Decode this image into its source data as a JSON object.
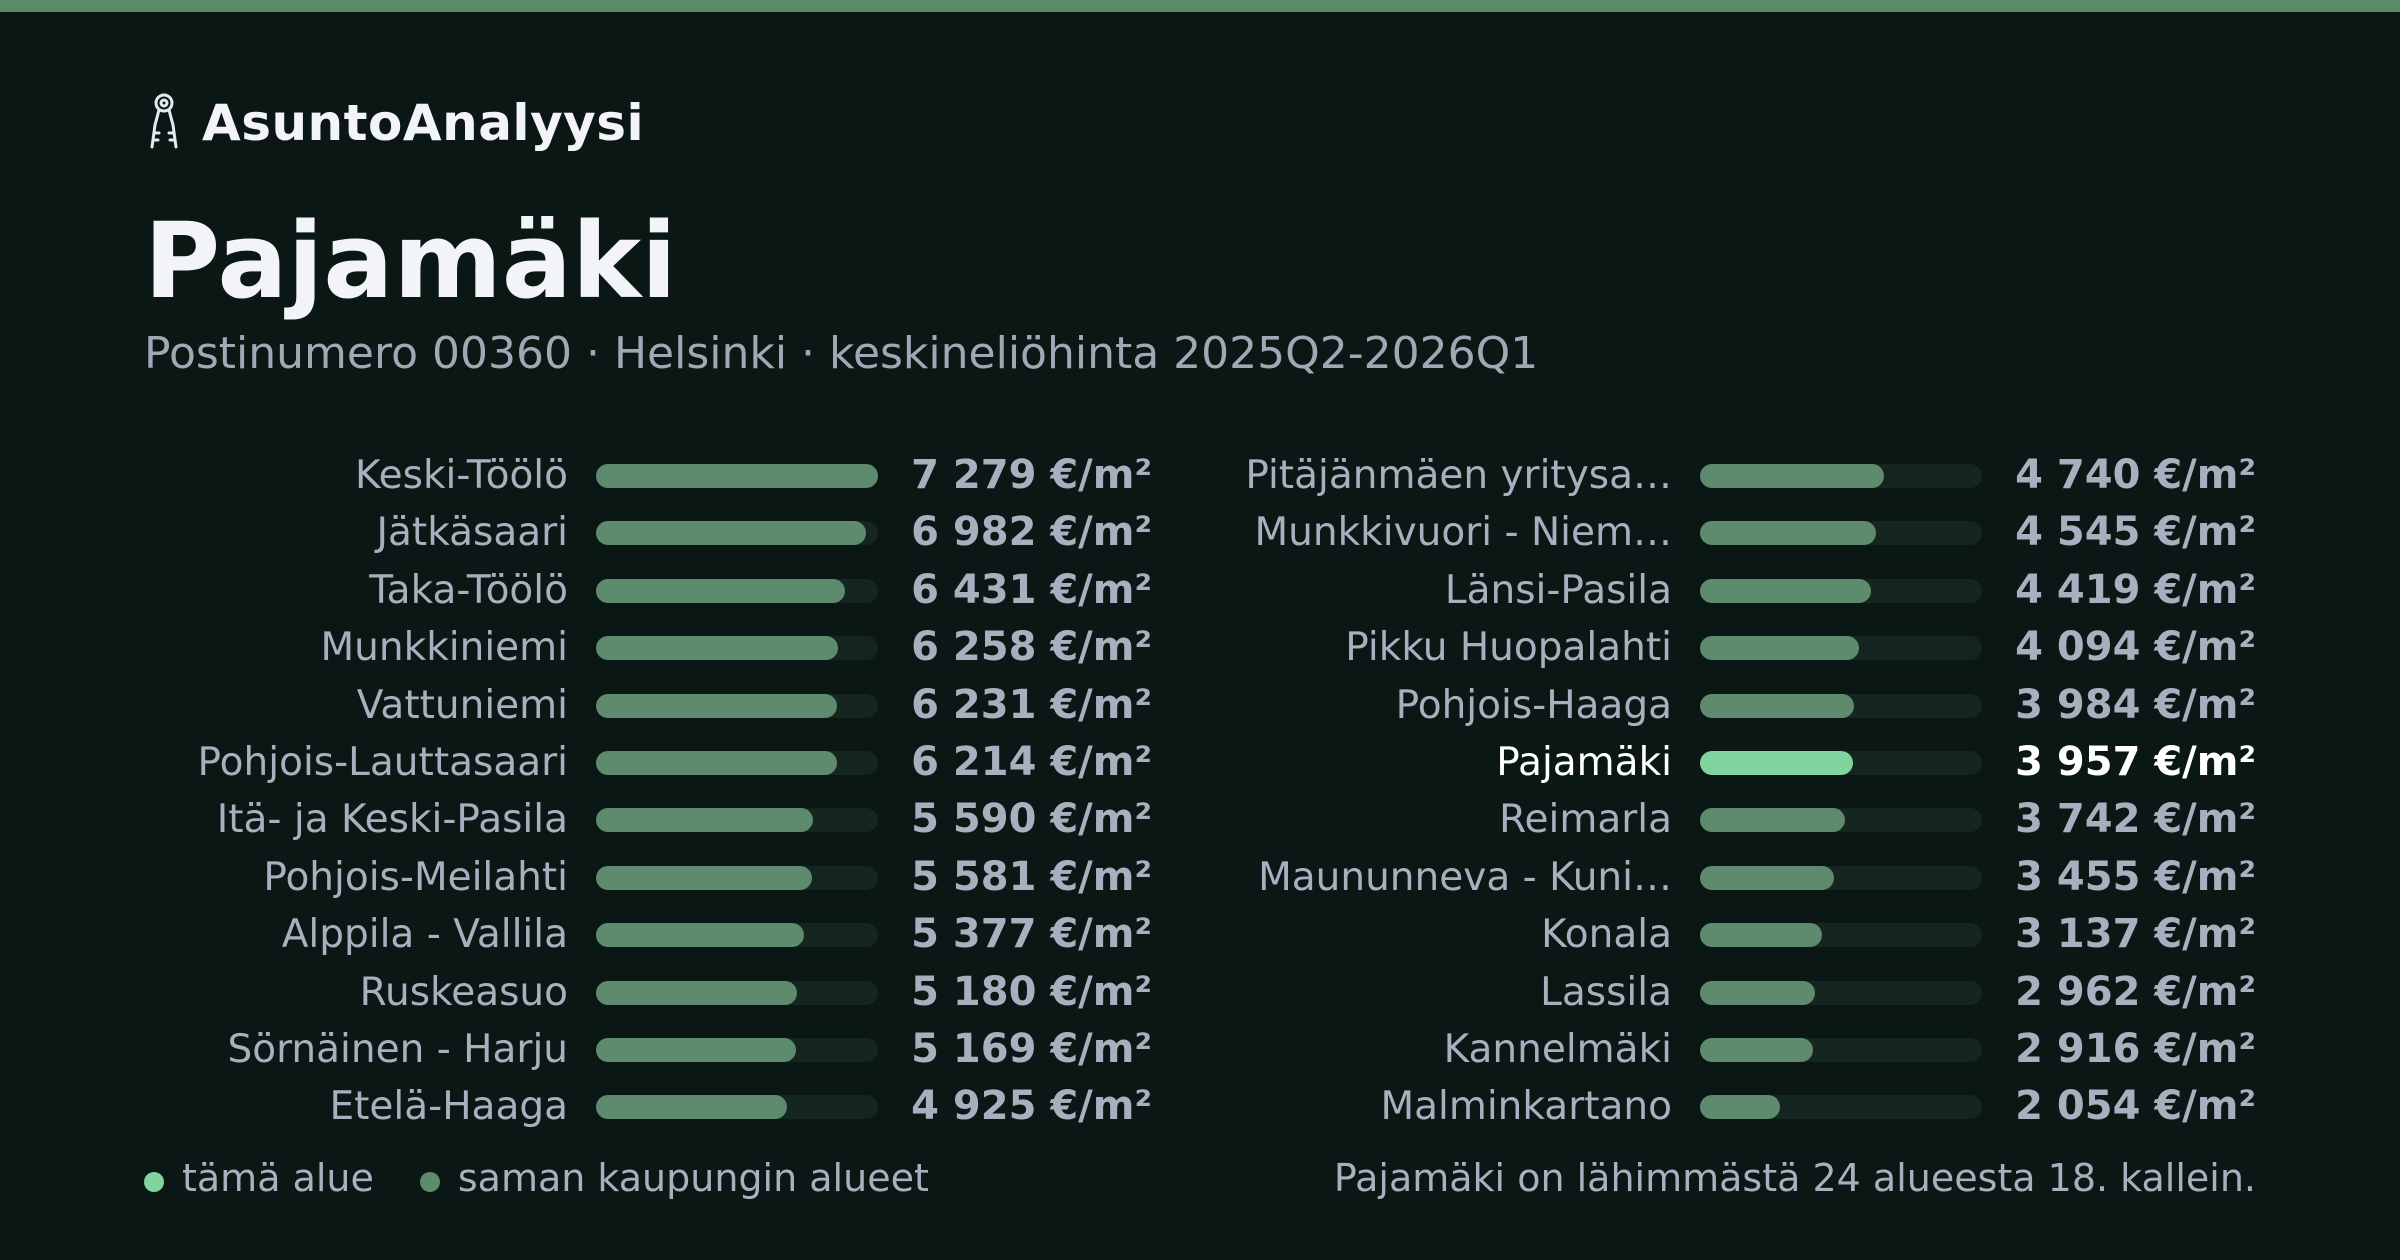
{
  "brand": {
    "name": "AsuntoAnalyysi",
    "icon": "keys-icon"
  },
  "header": {
    "title": "Pajamäki",
    "subtitle": "Postinumero 00360 · Helsinki · keskineliöhinta 2025Q2-2026Q1"
  },
  "colors": {
    "accent": "#5a8a66",
    "background": "#0a1714",
    "bar": "#5e8a6e",
    "bar_highlight": "#82d49e",
    "track": "#15251f"
  },
  "chart_data": {
    "type": "bar",
    "orientation": "horizontal",
    "unit": "€/m²",
    "xlim": [
      0,
      7279
    ],
    "highlight": "Pajamäki",
    "categories": [
      "Keski-Töölö",
      "Jätkäsaari",
      "Taka-Töölö",
      "Munkkiniemi",
      "Vattuniemi",
      "Pohjois-Lauttasaari",
      "Itä- ja Keski-Pasila",
      "Pohjois-Meilahti",
      "Alppila - Vallila",
      "Ruskeasuo",
      "Sörnäinen - Harju",
      "Etelä-Haaga",
      "Pitäjänmäen yritysa…",
      "Munkkivuori - Niem…",
      "Länsi-Pasila",
      "Pikku Huopalahti",
      "Pohjois-Haaga",
      "Pajamäki",
      "Reimarla",
      "Maununneva - Kuni…",
      "Konala",
      "Lassila",
      "Kannelmäki",
      "Malminkartano"
    ],
    "values": [
      7279,
      6982,
      6431,
      6258,
      6231,
      6214,
      5590,
      5581,
      5377,
      5180,
      5169,
      4925,
      4740,
      4545,
      4419,
      4094,
      3984,
      3957,
      3742,
      3455,
      3137,
      2962,
      2916,
      2054
    ],
    "value_labels": [
      "7 279 €/m²",
      "6 982 €/m²",
      "6 431 €/m²",
      "6 258 €/m²",
      "6 231 €/m²",
      "6 214 €/m²",
      "5 590 €/m²",
      "5 581 €/m²",
      "5 377 €/m²",
      "5 180 €/m²",
      "5 169 €/m²",
      "4 925 €/m²",
      "4 740 €/m²",
      "4 545 €/m²",
      "4 419 €/m²",
      "4 094 €/m²",
      "3 984 €/m²",
      "3 957 €/m²",
      "3 742 €/m²",
      "3 455 €/m²",
      "3 137 €/m²",
      "2 962 €/m²",
      "2 916 €/m²",
      "2 054 €/m²"
    ],
    "columns": 2,
    "rows_per_column": 12
  },
  "legend": {
    "this_area": "tämä alue",
    "same_city": "saman kaupungin alueet"
  },
  "footer": {
    "rank_text": "Pajamäki on lähimmästä 24 alueesta 18. kallein."
  }
}
